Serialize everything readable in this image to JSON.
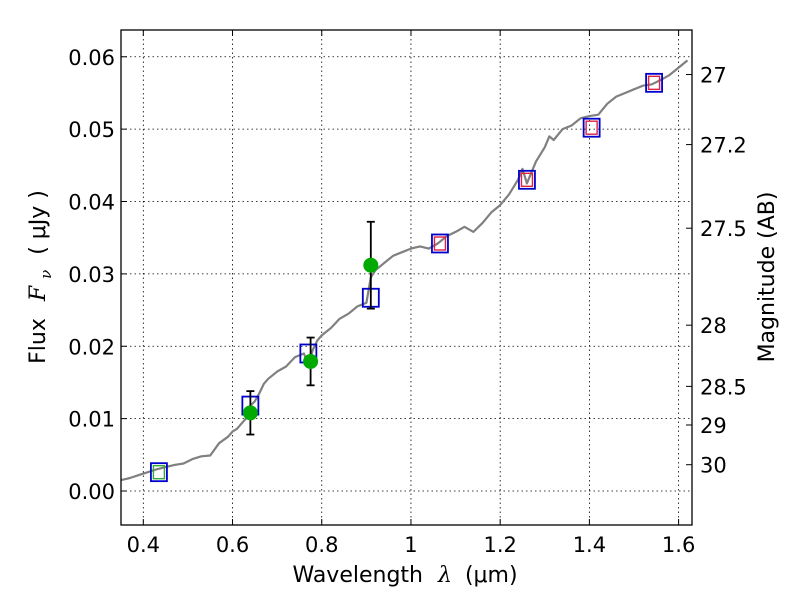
{
  "chart_data": {
    "type": "scatter",
    "xlabel_prefix": "Wavelength",
    "xlabel_symbol": "λ",
    "xlabel_units": "(μm)",
    "ylabel_prefix": "Flux",
    "ylabel_symbol": "F",
    "ylabel_subscript": "ν",
    "ylabel_units": "( μJy )",
    "y2label": "Magnitude (AB)",
    "xlim": [
      0.35,
      1.63
    ],
    "ylim": [
      -0.0047,
      0.0637
    ],
    "grid": true,
    "x_ticks": [
      0.4,
      0.6,
      0.8,
      1.0,
      1.2,
      1.4,
      1.6
    ],
    "x_tick_labels": [
      "0.4",
      "0.6",
      "0.8",
      "1",
      "1.2",
      "1.4",
      "1.6"
    ],
    "y_ticks": [
      0.0,
      0.01,
      0.02,
      0.03,
      0.04,
      0.05,
      0.06
    ],
    "y_tick_labels": [
      "0.00",
      "0.01",
      "0.02",
      "0.03",
      "0.04",
      "0.05",
      "0.06"
    ],
    "mag_ticks": [
      27,
      27.2,
      27.5,
      28,
      28.5,
      29,
      30
    ],
    "mag_tick_labels": [
      "27",
      "27.2",
      "27.5",
      "28",
      "28.5",
      "29",
      "30"
    ],
    "series": [
      {
        "kind": "spectrum",
        "color": "#808080",
        "x": [
          0.35,
          0.37,
          0.39,
          0.41,
          0.43,
          0.45,
          0.47,
          0.49,
          0.51,
          0.53,
          0.55,
          0.57,
          0.59,
          0.6,
          0.61,
          0.62,
          0.63,
          0.64,
          0.65,
          0.66,
          0.67,
          0.68,
          0.69,
          0.7,
          0.72,
          0.74,
          0.76,
          0.77,
          0.78,
          0.79,
          0.8,
          0.82,
          0.84,
          0.86,
          0.88,
          0.9,
          0.91,
          0.92,
          0.94,
          0.96,
          0.98,
          1.0,
          1.02,
          1.04,
          1.06,
          1.08,
          1.1,
          1.12,
          1.14,
          1.16,
          1.18,
          1.2,
          1.22,
          1.24,
          1.25,
          1.26,
          1.28,
          1.3,
          1.31,
          1.32,
          1.34,
          1.36,
          1.38,
          1.4,
          1.42,
          1.44,
          1.46,
          1.48,
          1.5,
          1.52,
          1.54,
          1.56,
          1.58,
          1.6,
          1.62
        ],
        "y": [
          0.0015,
          0.0018,
          0.0022,
          0.0026,
          0.003,
          0.0033,
          0.0036,
          0.0038,
          0.0044,
          0.0048,
          0.0049,
          0.0066,
          0.0075,
          0.0082,
          0.0086,
          0.0093,
          0.01,
          0.0118,
          0.0124,
          0.0135,
          0.0148,
          0.0155,
          0.016,
          0.0165,
          0.0172,
          0.0185,
          0.019,
          0.0175,
          0.0195,
          0.0208,
          0.0215,
          0.0225,
          0.0238,
          0.0245,
          0.0255,
          0.026,
          0.0295,
          0.0305,
          0.0315,
          0.0325,
          0.033,
          0.0335,
          0.0338,
          0.0335,
          0.0342,
          0.0352,
          0.0358,
          0.0365,
          0.0358,
          0.037,
          0.0385,
          0.0395,
          0.041,
          0.043,
          0.0445,
          0.0425,
          0.0455,
          0.0475,
          0.049,
          0.0485,
          0.05,
          0.0505,
          0.0515,
          0.0518,
          0.052,
          0.0535,
          0.0545,
          0.055,
          0.0555,
          0.056,
          0.0562,
          0.0568,
          0.0575,
          0.0585,
          0.0595
        ]
      },
      {
        "kind": "open-square",
        "color": "#0000cc",
        "x": [
          0.435,
          0.64,
          0.77,
          0.91,
          1.065,
          1.26,
          1.405,
          1.545
        ],
        "y": [
          0.0026,
          0.0118,
          0.019,
          0.0267,
          0.0342,
          0.043,
          0.0502,
          0.0564
        ]
      },
      {
        "kind": "open-square-inner",
        "color": "#dd2244",
        "x": [
          1.065,
          1.26,
          1.405,
          1.545
        ],
        "y": [
          0.0342,
          0.043,
          0.0502,
          0.0564
        ]
      },
      {
        "kind": "open-square-inner",
        "color": "#33aa33",
        "x": [
          0.435
        ],
        "y": [
          0.0026
        ]
      },
      {
        "kind": "filled-circle-errorbar",
        "color": "#00aa00",
        "x": [
          0.64,
          0.775,
          0.91
        ],
        "y": [
          0.0108,
          0.0179,
          0.0312
        ],
        "yerr": [
          0.003,
          0.0033,
          0.006
        ]
      }
    ]
  }
}
